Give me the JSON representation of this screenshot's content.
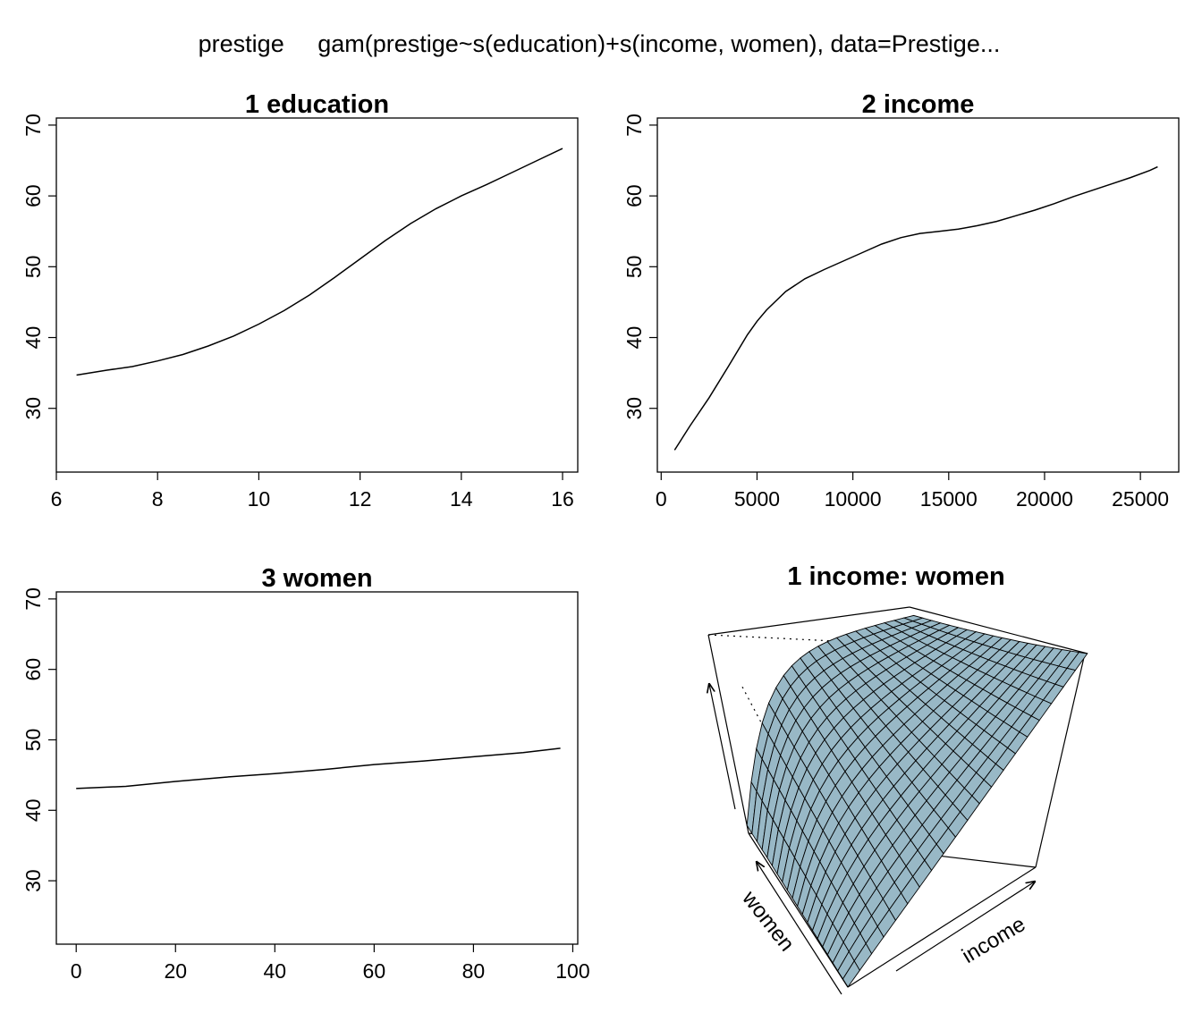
{
  "figure": {
    "title": "prestige     gam(prestige~s(education)+s(income, women), data=Prestige..."
  },
  "chart_data": [
    {
      "type": "line",
      "title": "1  education",
      "xlim": [
        6,
        16.3
      ],
      "ylim": [
        21,
        71
      ],
      "xticks": [
        6,
        8,
        10,
        12,
        14,
        16
      ],
      "yticks": [
        30,
        40,
        50,
        60,
        70
      ],
      "x": [
        6.4,
        7.0,
        7.5,
        8.0,
        8.5,
        9.0,
        9.5,
        10.0,
        10.5,
        11.0,
        11.5,
        12.0,
        12.5,
        13.0,
        13.5,
        14.0,
        14.5,
        15.0,
        15.5,
        16.0
      ],
      "y": [
        34.7,
        35.4,
        35.9,
        36.7,
        37.6,
        38.8,
        40.2,
        41.9,
        43.8,
        46.0,
        48.5,
        51.1,
        53.7,
        56.1,
        58.2,
        60.0,
        61.6,
        63.3,
        65.0,
        66.7
      ]
    },
    {
      "type": "line",
      "title": "2  income",
      "xlim": [
        -200,
        27000
      ],
      "ylim": [
        21,
        71
      ],
      "xticks": [
        0,
        5000,
        10000,
        15000,
        20000,
        25000
      ],
      "yticks": [
        30,
        40,
        50,
        60,
        70
      ],
      "x": [
        700,
        1500,
        2500,
        3500,
        4500,
        5000,
        5500,
        6500,
        7500,
        8500,
        9500,
        10500,
        11500,
        12500,
        13500,
        14500,
        15500,
        16500,
        17500,
        18500,
        19500,
        20500,
        21500,
        22500,
        23500,
        24500,
        25500,
        25900
      ],
      "y": [
        24.1,
        27.5,
        31.5,
        35.9,
        40.4,
        42.3,
        43.9,
        46.5,
        48.3,
        49.6,
        50.8,
        52.0,
        53.2,
        54.1,
        54.7,
        55.0,
        55.3,
        55.8,
        56.4,
        57.2,
        58.0,
        58.9,
        59.9,
        60.8,
        61.7,
        62.6,
        63.6,
        64.1
      ]
    },
    {
      "type": "line",
      "title": "3  women",
      "xlim": [
        -4,
        101
      ],
      "ylim": [
        21,
        71
      ],
      "xticks": [
        0,
        20,
        40,
        60,
        80,
        100
      ],
      "yticks": [
        30,
        40,
        50,
        60,
        70
      ],
      "x": [
        0,
        10,
        20,
        30,
        40,
        50,
        60,
        70,
        80,
        90,
        97.5
      ],
      "y": [
        43.1,
        43.4,
        44.1,
        44.7,
        45.2,
        45.8,
        46.5,
        47.0,
        47.6,
        48.2,
        48.8
      ]
    },
    {
      "type": "surface",
      "title": "1 income: women",
      "xlabel": "income",
      "ylabel": "women",
      "grid_size": 20,
      "fill_color": "#98b8c6",
      "line_color": "#000000"
    }
  ]
}
